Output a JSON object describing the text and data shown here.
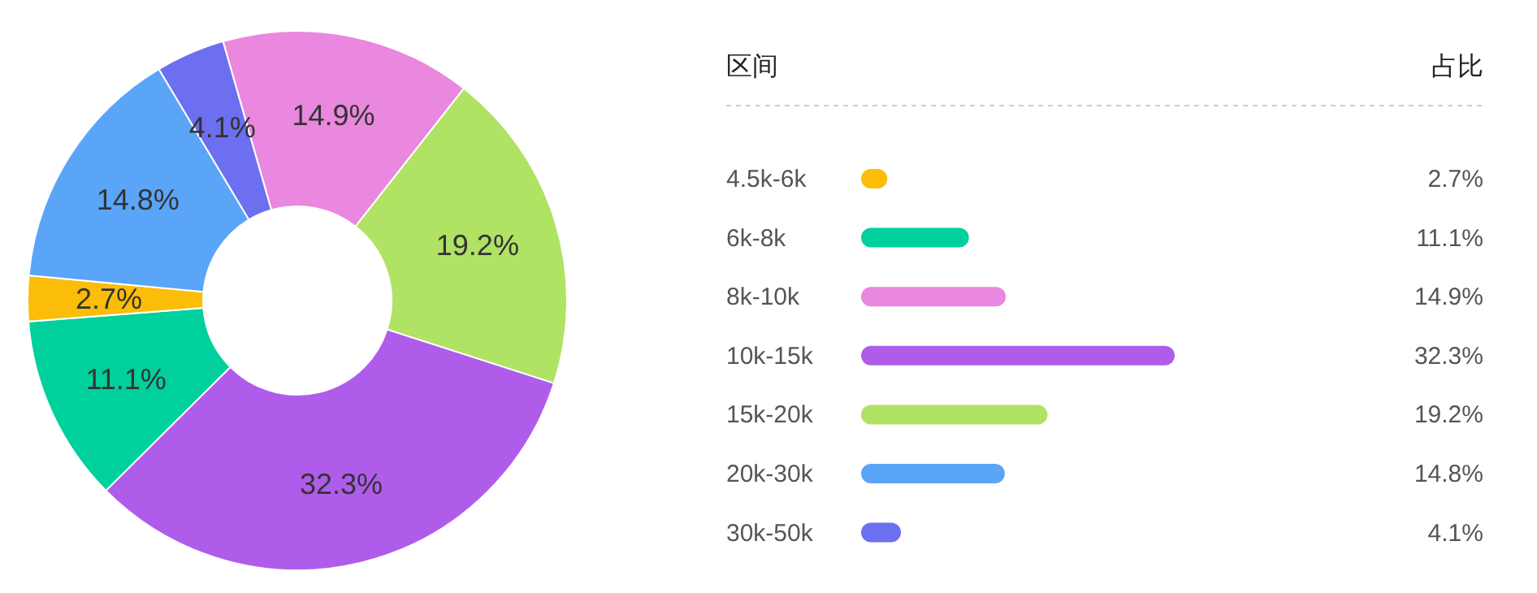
{
  "chart_data": [
    {
      "type": "donut",
      "categories": [
        null,
        null,
        null,
        null,
        null,
        null,
        null
      ],
      "values": [
        14.9,
        19.2,
        32.3,
        11.1,
        2.7,
        14.8,
        4.1
      ],
      "colors": [
        "#ea87de",
        "#b0e264",
        "#b05ceb",
        "#00d09c",
        "#fbbd08",
        "#5aa5f8",
        "#6c6ff0"
      ],
      "value_labels": [
        "14.9%",
        "19.2%",
        "32.3%",
        "11.1%",
        "2.7%",
        "14.8%",
        "4.1%"
      ]
    },
    {
      "type": "bar",
      "orientation": "horizontal",
      "annotations": [
        "区间",
        "占比"
      ],
      "categories": [
        "4.5k-6k",
        "6k-8k",
        "8k-10k",
        "10k-15k",
        "15k-20k",
        "20k-30k",
        "30k-50k"
      ],
      "values": [
        2.7,
        11.1,
        14.9,
        32.3,
        19.2,
        14.8,
        4.1
      ],
      "colors": [
        "#fbbd08",
        "#00d09c",
        "#ea87de",
        "#b05ceb",
        "#b0e264",
        "#5aa5f8",
        "#6c6ff0"
      ],
      "value_labels": [
        "2.7%",
        "11.1%",
        "14.9%",
        "32.3%",
        "19.2%",
        "14.8%",
        "4.1%"
      ]
    }
  ]
}
